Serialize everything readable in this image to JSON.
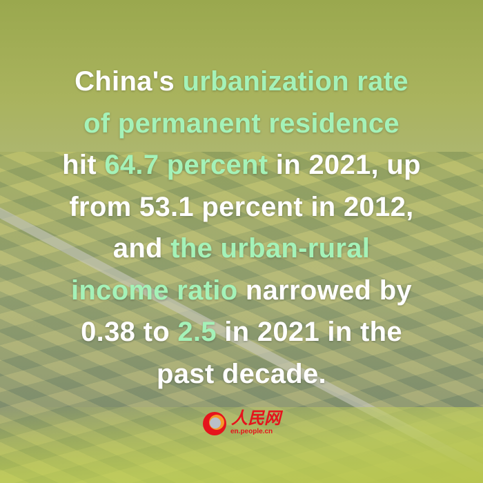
{
  "headline": {
    "lines": [
      [
        {
          "text": "China's ",
          "highlight": false
        },
        {
          "text": "urbanization rate",
          "highlight": true
        }
      ],
      [
        {
          "text": "of permanent residence",
          "highlight": true
        }
      ],
      [
        {
          "text": "hit ",
          "highlight": false
        },
        {
          "text": "64.7 percent",
          "highlight": true
        },
        {
          "text": " in 2021, up",
          "highlight": false
        }
      ],
      [
        {
          "text": "from 53.1 percent in 2012,",
          "highlight": false
        }
      ],
      [
        {
          "text": "and ",
          "highlight": false
        },
        {
          "text": "the urban-rural",
          "highlight": true
        }
      ],
      [
        {
          "text": "income ratio",
          "highlight": true
        },
        {
          "text": " narrowed by",
          "highlight": false
        }
      ],
      [
        {
          "text": "0.38 to ",
          "highlight": false
        },
        {
          "text": "2.5",
          "highlight": true
        },
        {
          "text": " in 2021 in the",
          "highlight": false
        }
      ],
      [
        {
          "text": "past decade.",
          "highlight": false
        }
      ]
    ]
  },
  "logo": {
    "name": "人民网",
    "url": "en.people.cn"
  },
  "colors": {
    "highlight": "#a4f2b8",
    "text": "#ffffff",
    "brand": "#e5141c"
  }
}
